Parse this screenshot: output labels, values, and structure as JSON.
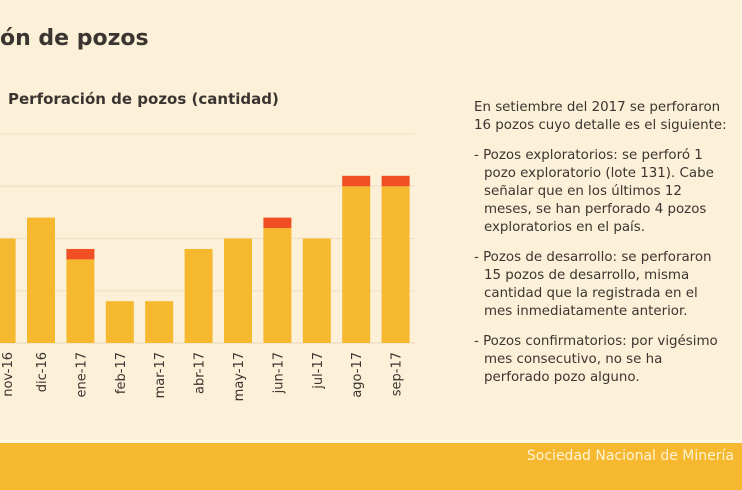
{
  "slide": {
    "title": "ón de pozos",
    "footer": "Sociedad Nacional de Minería"
  },
  "text": {
    "intro": "En setiembre del 2017 se perforaron 16 pozos cuyo detalle es el siguiente:",
    "bullets": [
      "- Pozos exploratorios: se perforó 1 pozo exploratorio (lote 131). Cabe señalar que en los últimos 12 meses, se han perforado 4 pozos exploratorios en el país.",
      "- Pozos de desarrollo: se perforaron 15 pozos de desarrollo, misma cantidad que la registrada en el mes inmediatamente anterior.",
      "- Pozos confirmatorios: por vigésimo mes consecutivo, no se ha perforado pozo alguno."
    ]
  },
  "colors": {
    "background": "#fcf0d8",
    "series_1": "#f5b82e",
    "series_2": "#f04e23",
    "footer": "#f5b82e"
  },
  "chart_data": {
    "type": "bar",
    "stacked": true,
    "title": "Perforación de pozos (cantidad)",
    "categories": [
      "nov-16",
      "dic-16",
      "ene-17",
      "feb-17",
      "mar-17",
      "abr-17",
      "may-17",
      "jun-17",
      "jul-17",
      "ago-17",
      "sep-17"
    ],
    "series": [
      {
        "values": [
          10,
          12,
          8,
          4,
          4,
          9,
          10,
          11,
          10,
          15,
          15
        ],
        "color": "#f5b82e"
      },
      {
        "values": [
          0,
          0,
          1,
          0,
          0,
          0,
          0,
          1,
          0,
          1,
          1
        ],
        "color": "#f04e23"
      }
    ],
    "ylim": [
      0,
      20
    ],
    "yticks": [
      0,
      5,
      10,
      15,
      20
    ],
    "grid": true
  }
}
